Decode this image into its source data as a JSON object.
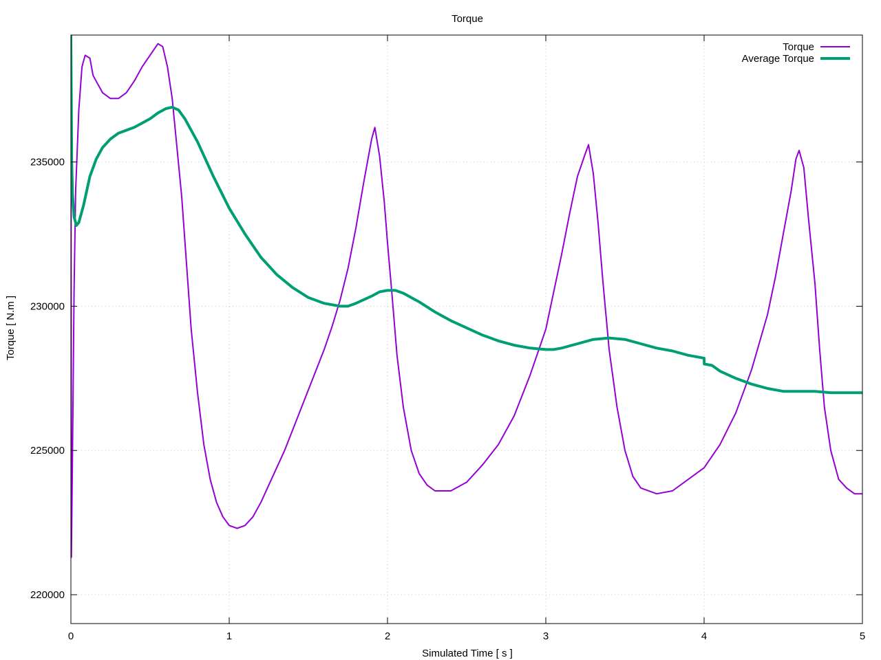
{
  "chart_data": {
    "type": "line",
    "title": "Torque",
    "xlabel": "Simulated Time [ s ]",
    "ylabel": "Torque [ N.m ]",
    "xlim": [
      0,
      5
    ],
    "ylim": [
      219000,
      239400
    ],
    "xticks": [
      0,
      1,
      2,
      3,
      4,
      5
    ],
    "yticks": [
      220000,
      225000,
      230000,
      235000
    ],
    "grid": true,
    "legend_position": "top-right",
    "series": [
      {
        "name": "Torque",
        "color": "#9400d3",
        "points": [
          [
            0.0,
            239500
          ],
          [
            0.003,
            221300
          ],
          [
            0.01,
            224800
          ],
          [
            0.02,
            230500
          ],
          [
            0.03,
            234000
          ],
          [
            0.05,
            236800
          ],
          [
            0.07,
            238300
          ],
          [
            0.09,
            238700
          ],
          [
            0.12,
            238600
          ],
          [
            0.14,
            238000
          ],
          [
            0.17,
            237700
          ],
          [
            0.2,
            237400
          ],
          [
            0.25,
            237200
          ],
          [
            0.3,
            237200
          ],
          [
            0.35,
            237400
          ],
          [
            0.4,
            237800
          ],
          [
            0.45,
            238300
          ],
          [
            0.5,
            238700
          ],
          [
            0.55,
            239100
          ],
          [
            0.58,
            239000
          ],
          [
            0.61,
            238300
          ],
          [
            0.64,
            237200
          ],
          [
            0.67,
            235500
          ],
          [
            0.7,
            233800
          ],
          [
            0.73,
            231500
          ],
          [
            0.76,
            229200
          ],
          [
            0.8,
            227000
          ],
          [
            0.84,
            225200
          ],
          [
            0.88,
            224000
          ],
          [
            0.92,
            223200
          ],
          [
            0.96,
            222700
          ],
          [
            1.0,
            222400
          ],
          [
            1.05,
            222300
          ],
          [
            1.1,
            222400
          ],
          [
            1.15,
            222700
          ],
          [
            1.2,
            223200
          ],
          [
            1.25,
            223800
          ],
          [
            1.3,
            224400
          ],
          [
            1.35,
            225000
          ],
          [
            1.4,
            225700
          ],
          [
            1.45,
            226400
          ],
          [
            1.5,
            227100
          ],
          [
            1.55,
            227800
          ],
          [
            1.6,
            228500
          ],
          [
            1.65,
            229300
          ],
          [
            1.7,
            230200
          ],
          [
            1.75,
            231300
          ],
          [
            1.8,
            232700
          ],
          [
            1.85,
            234300
          ],
          [
            1.9,
            235800
          ],
          [
            1.92,
            236200
          ],
          [
            1.95,
            235200
          ],
          [
            1.98,
            233600
          ],
          [
            2.0,
            232200
          ],
          [
            2.03,
            230300
          ],
          [
            2.06,
            228300
          ],
          [
            2.1,
            226500
          ],
          [
            2.15,
            225000
          ],
          [
            2.2,
            224200
          ],
          [
            2.25,
            223800
          ],
          [
            2.3,
            223600
          ],
          [
            2.4,
            223600
          ],
          [
            2.5,
            223900
          ],
          [
            2.6,
            224500
          ],
          [
            2.7,
            225200
          ],
          [
            2.8,
            226200
          ],
          [
            2.9,
            227600
          ],
          [
            3.0,
            229200
          ],
          [
            3.05,
            230500
          ],
          [
            3.1,
            231800
          ],
          [
            3.15,
            233200
          ],
          [
            3.2,
            234500
          ],
          [
            3.25,
            235300
          ],
          [
            3.27,
            235600
          ],
          [
            3.3,
            234600
          ],
          [
            3.33,
            232900
          ],
          [
            3.36,
            230900
          ],
          [
            3.4,
            228500
          ],
          [
            3.45,
            226500
          ],
          [
            3.5,
            225000
          ],
          [
            3.55,
            224100
          ],
          [
            3.6,
            223700
          ],
          [
            3.7,
            223500
          ],
          [
            3.8,
            223600
          ],
          [
            3.9,
            224000
          ],
          [
            4.0,
            224400
          ],
          [
            4.1,
            225200
          ],
          [
            4.2,
            226300
          ],
          [
            4.3,
            227800
          ],
          [
            4.4,
            229700
          ],
          [
            4.45,
            231000
          ],
          [
            4.5,
            232500
          ],
          [
            4.55,
            234000
          ],
          [
            4.58,
            235100
          ],
          [
            4.6,
            235400
          ],
          [
            4.63,
            234800
          ],
          [
            4.66,
            233000
          ],
          [
            4.7,
            230800
          ],
          [
            4.73,
            228500
          ],
          [
            4.76,
            226500
          ],
          [
            4.8,
            225000
          ],
          [
            4.85,
            224000
          ],
          [
            4.9,
            223700
          ],
          [
            4.95,
            223500
          ],
          [
            5.0,
            223500
          ]
        ]
      },
      {
        "name": "Average Torque",
        "color": "#009e73",
        "points": [
          [
            0.0,
            239400
          ],
          [
            0.005,
            235000
          ],
          [
            0.01,
            233900
          ],
          [
            0.02,
            233100
          ],
          [
            0.035,
            232800
          ],
          [
            0.05,
            232900
          ],
          [
            0.08,
            233500
          ],
          [
            0.12,
            234500
          ],
          [
            0.16,
            235100
          ],
          [
            0.2,
            235500
          ],
          [
            0.25,
            235800
          ],
          [
            0.3,
            236000
          ],
          [
            0.35,
            236100
          ],
          [
            0.4,
            236200
          ],
          [
            0.45,
            236350
          ],
          [
            0.5,
            236500
          ],
          [
            0.55,
            236700
          ],
          [
            0.6,
            236850
          ],
          [
            0.64,
            236900
          ],
          [
            0.68,
            236800
          ],
          [
            0.72,
            236500
          ],
          [
            0.8,
            235700
          ],
          [
            0.9,
            234500
          ],
          [
            1.0,
            233400
          ],
          [
            1.1,
            232500
          ],
          [
            1.2,
            231700
          ],
          [
            1.3,
            231100
          ],
          [
            1.4,
            230650
          ],
          [
            1.5,
            230300
          ],
          [
            1.6,
            230100
          ],
          [
            1.7,
            230000
          ],
          [
            1.75,
            230000
          ],
          [
            1.8,
            230100
          ],
          [
            1.9,
            230350
          ],
          [
            1.95,
            230500
          ],
          [
            2.0,
            230550
          ],
          [
            2.05,
            230550
          ],
          [
            2.1,
            230450
          ],
          [
            2.2,
            230150
          ],
          [
            2.3,
            229800
          ],
          [
            2.4,
            229500
          ],
          [
            2.5,
            229250
          ],
          [
            2.6,
            229000
          ],
          [
            2.7,
            228800
          ],
          [
            2.8,
            228650
          ],
          [
            2.9,
            228550
          ],
          [
            3.0,
            228500
          ],
          [
            3.05,
            228500
          ],
          [
            3.1,
            228550
          ],
          [
            3.2,
            228700
          ],
          [
            3.3,
            228850
          ],
          [
            3.4,
            228900
          ],
          [
            3.5,
            228850
          ],
          [
            3.6,
            228700
          ],
          [
            3.7,
            228550
          ],
          [
            3.8,
            228450
          ],
          [
            3.9,
            228300
          ],
          [
            4.0,
            228200
          ],
          [
            4.001,
            228000
          ],
          [
            4.05,
            227950
          ],
          [
            4.1,
            227750
          ],
          [
            4.2,
            227500
          ],
          [
            4.3,
            227300
          ],
          [
            4.4,
            227150
          ],
          [
            4.5,
            227050
          ],
          [
            4.6,
            227050
          ],
          [
            4.7,
            227050
          ],
          [
            4.8,
            227000
          ],
          [
            4.9,
            227000
          ],
          [
            5.0,
            227000
          ]
        ]
      }
    ]
  }
}
